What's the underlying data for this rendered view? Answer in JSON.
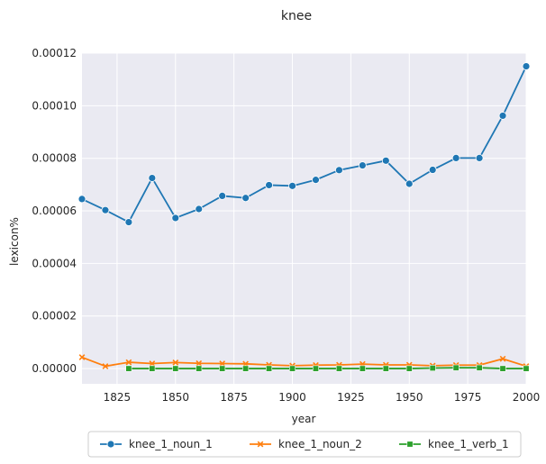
{
  "chart_data": {
    "type": "line",
    "title": "knee",
    "xlabel": "year",
    "ylabel": "lexicon%",
    "xlim": [
      1810,
      2000
    ],
    "ylim": [
      -5.8e-06,
      0.00012
    ],
    "xticks": [
      1825,
      1850,
      1875,
      1900,
      1925,
      1950,
      1975,
      2000
    ],
    "yticks": [
      0.0,
      2e-05,
      4e-05,
      6e-05,
      8e-05,
      0.0001,
      0.00012
    ],
    "xtick_labels": [
      "1825",
      "1850",
      "1875",
      "1900",
      "1925",
      "1950",
      "1975",
      "2000"
    ],
    "ytick_labels": [
      "0.00000",
      "0.00002",
      "0.00004",
      "0.00006",
      "0.00008",
      "0.00010",
      "0.00012"
    ],
    "grid": true,
    "legend_position": "bottom-center",
    "background_color": "#eaeaf2",
    "series": [
      {
        "name": "knee_1_noun_1",
        "color": "#1f77b4",
        "marker": "circle",
        "x": [
          1810,
          1820,
          1830,
          1840,
          1850,
          1860,
          1870,
          1880,
          1890,
          1900,
          1910,
          1920,
          1930,
          1940,
          1950,
          1960,
          1970,
          1980,
          1990,
          2000
        ],
        "y": [
          6.45e-05,
          6.03e-05,
          5.57e-05,
          7.25e-05,
          5.73e-05,
          6.07e-05,
          6.57e-05,
          6.49e-05,
          6.98e-05,
          6.95e-05,
          7.18e-05,
          7.55e-05,
          7.73e-05,
          7.91e-05,
          7.03e-05,
          7.56e-05,
          8.01e-05,
          8.01e-05,
          9.62e-05,
          0.000115
        ]
      },
      {
        "name": "knee_1_noun_2",
        "color": "#ff7f0e",
        "marker": "x",
        "x": [
          1810,
          1820,
          1830,
          1840,
          1850,
          1860,
          1870,
          1880,
          1890,
          1900,
          1910,
          1920,
          1930,
          1940,
          1950,
          1960,
          1970,
          1980,
          1990,
          2000
        ],
        "y": [
          4.3e-06,
          9e-07,
          2.4e-06,
          1.9e-06,
          2.3e-06,
          2e-06,
          1.9e-06,
          1.8e-06,
          1.4e-06,
          1.1e-06,
          1.3e-06,
          1.4e-06,
          1.7e-06,
          1.4e-06,
          1.4e-06,
          1.1e-06,
          1.3e-06,
          1.3e-06,
          3.7e-06,
          9e-07
        ]
      },
      {
        "name": "knee_1_verb_1",
        "color": "#2ca02c",
        "marker": "square",
        "x": [
          1830,
          1840,
          1850,
          1860,
          1870,
          1880,
          1890,
          1900,
          1910,
          1920,
          1930,
          1940,
          1950,
          1960,
          1970,
          1980,
          1990,
          2000
        ],
        "y": [
          0.0,
          0.0,
          0.0,
          0.0,
          0.0,
          0.0,
          0.0,
          0.0,
          0.0,
          0.0,
          0.0,
          0.0,
          0.0,
          2e-07,
          3e-07,
          3e-07,
          0.0,
          0.0
        ]
      }
    ]
  }
}
